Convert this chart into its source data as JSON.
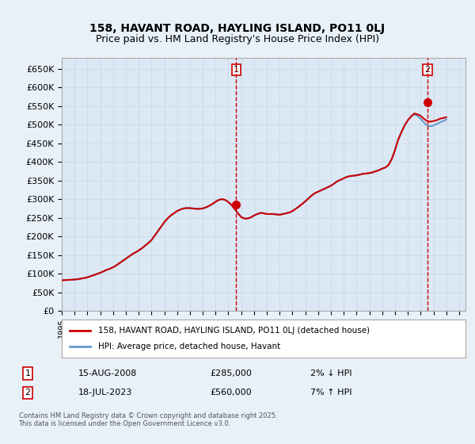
{
  "title_line1": "158, HAVANT ROAD, HAYLING ISLAND, PO11 0LJ",
  "title_line2": "Price paid vs. HM Land Registry's House Price Index (HPI)",
  "ylabel": "",
  "ylim": [
    0,
    680000
  ],
  "yticks": [
    0,
    50000,
    100000,
    150000,
    200000,
    250000,
    300000,
    350000,
    400000,
    450000,
    500000,
    550000,
    600000,
    650000
  ],
  "ytick_labels": [
    "£0",
    "£50K",
    "£100K",
    "£150K",
    "£200K",
    "£250K",
    "£300K",
    "£350K",
    "£400K",
    "£450K",
    "£500K",
    "£550K",
    "£600K",
    "£650K"
  ],
  "xlim_start": 1995.0,
  "xlim_end": 2026.5,
  "sale1_x": 2008.617,
  "sale1_y": 285000,
  "sale1_label": "1",
  "sale1_date": "15-AUG-2008",
  "sale1_price": "£285,000",
  "sale1_note": "2% ↓ HPI",
  "sale2_x": 2023.538,
  "sale2_y": 560000,
  "sale2_label": "2",
  "sale2_date": "18-JUL-2023",
  "sale2_price": "£560,000",
  "sale2_note": "7% ↑ HPI",
  "line_color_price": "#cc0000",
  "line_color_hpi": "#6699cc",
  "grid_color": "#ccddee",
  "background_color": "#e8f0f8",
  "plot_bg_color": "#dce8f4",
  "copyright_text": "Contains HM Land Registry data © Crown copyright and database right 2025.\nThis data is licensed under the Open Government Licence v3.0.",
  "legend_label1": "158, HAVANT ROAD, HAYLING ISLAND, PO11 0LJ (detached house)",
  "legend_label2": "HPI: Average price, detached house, Havant",
  "hpi_data": {
    "years": [
      1995.0,
      1995.25,
      1995.5,
      1995.75,
      1996.0,
      1996.25,
      1996.5,
      1996.75,
      1997.0,
      1997.25,
      1997.5,
      1997.75,
      1998.0,
      1998.25,
      1998.5,
      1998.75,
      1999.0,
      1999.25,
      1999.5,
      1999.75,
      2000.0,
      2000.25,
      2000.5,
      2000.75,
      2001.0,
      2001.25,
      2001.5,
      2001.75,
      2002.0,
      2002.25,
      2002.5,
      2002.75,
      2003.0,
      2003.25,
      2003.5,
      2003.75,
      2004.0,
      2004.25,
      2004.5,
      2004.75,
      2005.0,
      2005.25,
      2005.5,
      2005.75,
      2006.0,
      2006.25,
      2006.5,
      2006.75,
      2007.0,
      2007.25,
      2007.5,
      2007.75,
      2008.0,
      2008.25,
      2008.5,
      2008.75,
      2009.0,
      2009.25,
      2009.5,
      2009.75,
      2010.0,
      2010.25,
      2010.5,
      2010.75,
      2011.0,
      2011.25,
      2011.5,
      2011.75,
      2012.0,
      2012.25,
      2012.5,
      2012.75,
      2013.0,
      2013.25,
      2013.5,
      2013.75,
      2014.0,
      2014.25,
      2014.5,
      2014.75,
      2015.0,
      2015.25,
      2015.5,
      2015.75,
      2016.0,
      2016.25,
      2016.5,
      2016.75,
      2017.0,
      2017.25,
      2017.5,
      2017.75,
      2018.0,
      2018.25,
      2018.5,
      2018.75,
      2019.0,
      2019.25,
      2019.5,
      2019.75,
      2020.0,
      2020.25,
      2020.5,
      2020.75,
      2021.0,
      2021.25,
      2021.5,
      2021.75,
      2022.0,
      2022.25,
      2022.5,
      2022.75,
      2023.0,
      2023.25,
      2023.5,
      2023.75,
      2024.0,
      2024.25,
      2024.5,
      2024.75,
      2025.0
    ],
    "values": [
      82000,
      82500,
      83000,
      83500,
      84000,
      85000,
      86500,
      88000,
      90000,
      93000,
      96000,
      99000,
      102000,
      106000,
      110000,
      113000,
      117000,
      122000,
      128000,
      134000,
      140000,
      146000,
      152000,
      157000,
      162000,
      168000,
      175000,
      182000,
      190000,
      202000,
      214000,
      226000,
      238000,
      248000,
      256000,
      262000,
      268000,
      272000,
      275000,
      276000,
      276000,
      275000,
      274000,
      274000,
      275000,
      278000,
      282000,
      287000,
      293000,
      298000,
      300000,
      298000,
      292000,
      284000,
      273000,
      262000,
      252000,
      248000,
      248000,
      251000,
      256000,
      260000,
      263000,
      262000,
      260000,
      260000,
      260000,
      259000,
      258000,
      260000,
      262000,
      264000,
      268000,
      274000,
      280000,
      287000,
      294000,
      302000,
      310000,
      316000,
      320000,
      324000,
      328000,
      332000,
      336000,
      342000,
      348000,
      352000,
      356000,
      360000,
      362000,
      363000,
      364000,
      366000,
      368000,
      369000,
      370000,
      372000,
      375000,
      378000,
      382000,
      385000,
      392000,
      408000,
      432000,
      460000,
      480000,
      498000,
      512000,
      522000,
      528000,
      524000,
      516000,
      506000,
      498000,
      496000,
      498000,
      502000,
      506000,
      510000,
      514000
    ]
  },
  "price_data": {
    "years": [
      1995.0,
      1995.25,
      1995.5,
      1995.75,
      1996.0,
      1996.25,
      1996.5,
      1996.75,
      1997.0,
      1997.25,
      1997.5,
      1997.75,
      1998.0,
      1998.25,
      1998.5,
      1998.75,
      1999.0,
      1999.25,
      1999.5,
      1999.75,
      2000.0,
      2000.25,
      2000.5,
      2000.75,
      2001.0,
      2001.25,
      2001.5,
      2001.75,
      2002.0,
      2002.25,
      2002.5,
      2002.75,
      2003.0,
      2003.25,
      2003.5,
      2003.75,
      2004.0,
      2004.25,
      2004.5,
      2004.75,
      2005.0,
      2005.25,
      2005.5,
      2005.75,
      2006.0,
      2006.25,
      2006.5,
      2006.75,
      2007.0,
      2007.25,
      2007.5,
      2007.75,
      2008.0,
      2008.25,
      2008.5,
      2008.75,
      2009.0,
      2009.25,
      2009.5,
      2009.75,
      2010.0,
      2010.25,
      2010.5,
      2010.75,
      2011.0,
      2011.25,
      2011.5,
      2011.75,
      2012.0,
      2012.25,
      2012.5,
      2012.75,
      2013.0,
      2013.25,
      2013.5,
      2013.75,
      2014.0,
      2014.25,
      2014.5,
      2014.75,
      2015.0,
      2015.25,
      2015.5,
      2015.75,
      2016.0,
      2016.25,
      2016.5,
      2016.75,
      2017.0,
      2017.25,
      2017.5,
      2017.75,
      2018.0,
      2018.25,
      2018.5,
      2018.75,
      2019.0,
      2019.25,
      2019.5,
      2019.75,
      2020.0,
      2020.25,
      2020.5,
      2020.75,
      2021.0,
      2021.25,
      2021.5,
      2021.75,
      2022.0,
      2022.25,
      2022.5,
      2022.75,
      2023.0,
      2023.25,
      2023.5,
      2023.75,
      2024.0,
      2024.25,
      2024.5,
      2024.75,
      2025.0
    ],
    "values": [
      82000,
      82500,
      83000,
      83500,
      84000,
      85000,
      86500,
      88000,
      90000,
      93000,
      96000,
      99000,
      102000,
      106000,
      110000,
      113000,
      117000,
      122000,
      128000,
      134000,
      140000,
      146000,
      152000,
      157000,
      162000,
      168000,
      175000,
      182000,
      190000,
      202000,
      214000,
      226000,
      238000,
      248000,
      256000,
      262000,
      268000,
      272000,
      275000,
      276000,
      276000,
      275000,
      274000,
      274000,
      275000,
      278000,
      282000,
      287000,
      293000,
      298000,
      300000,
      298000,
      292000,
      284000,
      273000,
      262000,
      252000,
      248000,
      248000,
      251000,
      256000,
      260000,
      263000,
      262000,
      260000,
      260000,
      260000,
      259000,
      258000,
      260000,
      262000,
      264000,
      268000,
      274000,
      280000,
      287000,
      294000,
      302000,
      310000,
      316000,
      320000,
      324000,
      328000,
      332000,
      336000,
      342000,
      348000,
      352000,
      356000,
      360000,
      362000,
      363000,
      364000,
      366000,
      368000,
      369000,
      370000,
      372000,
      375000,
      378000,
      382000,
      385000,
      392000,
      408000,
      432000,
      460000,
      480000,
      498000,
      512000,
      522000,
      530000,
      528000,
      524000,
      516000,
      510000,
      508000,
      510000,
      512000,
      516000,
      518000,
      520000
    ]
  }
}
